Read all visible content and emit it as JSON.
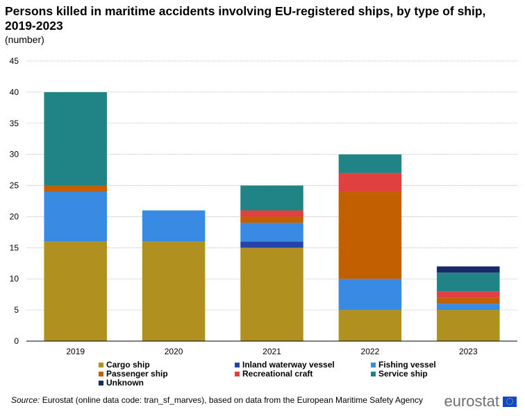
{
  "title": "Persons killed in maritime accidents involving EU-registered ships, by type of ship, 2019-2023",
  "subtitle": "(number)",
  "source": {
    "label": "Source:",
    "text": "Eurostat (online data code: tran_sf_marves),  based on data from the European Maritime Safety Agency"
  },
  "logo": {
    "text": "eurostat"
  },
  "chart_data": {
    "type": "bar",
    "stacked": true,
    "categories": [
      "2019",
      "2020",
      "2021",
      "2022",
      "2023"
    ],
    "yticks": [
      "0",
      "5",
      "10",
      "15",
      "20",
      "25",
      "30",
      "35",
      "40",
      "45"
    ],
    "ylim": [
      0,
      45
    ],
    "grid": true,
    "legend_position": "bottom",
    "series": [
      {
        "name": "Cargo ship",
        "color": "#b09120",
        "values": [
          16,
          16,
          15,
          5,
          5
        ]
      },
      {
        "name": "Inland waterway vessel",
        "color": "#2644a7",
        "values": [
          0,
          0,
          1,
          0,
          0
        ]
      },
      {
        "name": "Fishing vessel",
        "color": "#388ae2",
        "values": [
          8,
          5,
          3,
          5,
          1
        ]
      },
      {
        "name": "Passenger ship",
        "color": "#c25f01",
        "values": [
          1,
          0,
          1,
          14,
          1
        ]
      },
      {
        "name": "Recreational craft",
        "color": "#e04040",
        "values": [
          0,
          0,
          1,
          3,
          1
        ]
      },
      {
        "name": "Service ship",
        "color": "#208486",
        "values": [
          15,
          0,
          4,
          3,
          3
        ]
      },
      {
        "name": "Unknown",
        "color": "#172969",
        "values": [
          0,
          0,
          0,
          0,
          1
        ]
      }
    ]
  }
}
